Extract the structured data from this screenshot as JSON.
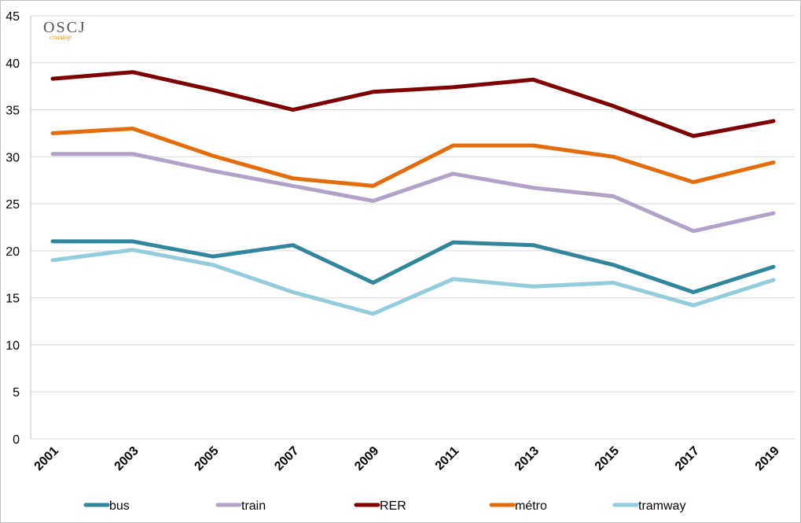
{
  "logo": {
    "text": "OSCJ",
    "subtext": "coastop"
  },
  "chart_data": {
    "type": "line",
    "title": "",
    "xlabel": "",
    "ylabel": "",
    "categories": [
      "2001",
      "2003",
      "2005",
      "2007",
      "2009",
      "2011",
      "2013",
      "2015",
      "2017",
      "2019"
    ],
    "ylim": [
      0,
      45
    ],
    "yticks": [
      "0",
      "5",
      "10",
      "15",
      "20",
      "25",
      "30",
      "35",
      "40",
      "45"
    ],
    "grid": true,
    "legend_position": "bottom",
    "series": [
      {
        "name": "bus",
        "color": "#31859c",
        "values": [
          21.0,
          21.0,
          19.4,
          20.6,
          16.6,
          20.9,
          20.6,
          18.5,
          15.6,
          18.3
        ]
      },
      {
        "name": "train",
        "color": "#b3a2c7",
        "values": [
          30.3,
          30.3,
          28.5,
          26.9,
          25.3,
          28.2,
          26.7,
          25.8,
          22.1,
          24.0
        ]
      },
      {
        "name": "RER",
        "color": "#7f0000",
        "values": [
          38.3,
          39.0,
          37.1,
          35.0,
          36.9,
          37.4,
          38.2,
          35.4,
          32.2,
          33.8
        ]
      },
      {
        "name": "métro",
        "color": "#e46c0a",
        "values": [
          32.5,
          33.0,
          30.1,
          27.7,
          26.9,
          31.2,
          31.2,
          30.0,
          27.3,
          29.4
        ]
      },
      {
        "name": "tramway",
        "color": "#93cddd",
        "values": [
          19.0,
          20.1,
          18.5,
          15.6,
          13.3,
          17.0,
          16.2,
          16.6,
          14.2,
          16.9
        ]
      }
    ]
  }
}
